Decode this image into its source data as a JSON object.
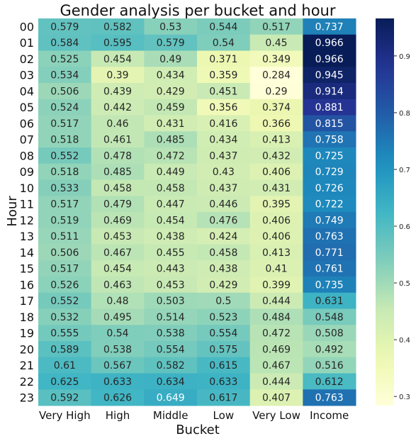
{
  "chart_data": {
    "type": "heatmap",
    "title": "Gender analysis per bucket and hour",
    "xlabel": "Bucket",
    "ylabel": "Hour",
    "x_categories": [
      "Very High",
      "High",
      "Middle",
      "Low",
      "Very Low",
      "Income"
    ],
    "y_categories": [
      "00",
      "01",
      "02",
      "03",
      "04",
      "05",
      "06",
      "07",
      "08",
      "09",
      "10",
      "11",
      "12",
      "13",
      "14",
      "15",
      "16",
      "17",
      "18",
      "19",
      "20",
      "21",
      "22",
      "23"
    ],
    "values": [
      [
        0.579,
        0.582,
        0.53,
        0.544,
        0.517,
        0.737
      ],
      [
        0.584,
        0.595,
        0.579,
        0.54,
        0.45,
        0.966
      ],
      [
        0.525,
        0.454,
        0.49,
        0.371,
        0.349,
        0.966
      ],
      [
        0.534,
        0.39,
        0.434,
        0.359,
        0.284,
        0.945
      ],
      [
        0.506,
        0.439,
        0.429,
        0.451,
        0.29,
        0.914
      ],
      [
        0.524,
        0.442,
        0.459,
        0.356,
        0.374,
        0.881
      ],
      [
        0.517,
        0.46,
        0.431,
        0.416,
        0.366,
        0.815
      ],
      [
        0.518,
        0.461,
        0.485,
        0.434,
        0.413,
        0.758
      ],
      [
        0.552,
        0.478,
        0.472,
        0.437,
        0.432,
        0.725
      ],
      [
        0.518,
        0.485,
        0.449,
        0.43,
        0.406,
        0.729
      ],
      [
        0.533,
        0.458,
        0.458,
        0.437,
        0.431,
        0.726
      ],
      [
        0.517,
        0.479,
        0.447,
        0.446,
        0.395,
        0.722
      ],
      [
        0.519,
        0.469,
        0.454,
        0.476,
        0.406,
        0.749
      ],
      [
        0.511,
        0.453,
        0.438,
        0.424,
        0.406,
        0.763
      ],
      [
        0.506,
        0.467,
        0.455,
        0.458,
        0.413,
        0.771
      ],
      [
        0.517,
        0.454,
        0.443,
        0.438,
        0.41,
        0.761
      ],
      [
        0.526,
        0.463,
        0.453,
        0.429,
        0.399,
        0.735
      ],
      [
        0.552,
        0.48,
        0.503,
        0.5,
        0.444,
        0.631
      ],
      [
        0.532,
        0.495,
        0.514,
        0.523,
        0.484,
        0.548
      ],
      [
        0.555,
        0.54,
        0.538,
        0.554,
        0.472,
        0.508
      ],
      [
        0.589,
        0.538,
        0.554,
        0.575,
        0.469,
        0.492
      ],
      [
        0.61,
        0.567,
        0.582,
        0.615,
        0.467,
        0.516
      ],
      [
        0.625,
        0.633,
        0.634,
        0.633,
        0.444,
        0.612
      ],
      [
        0.592,
        0.626,
        0.649,
        0.617,
        0.407,
        0.763
      ]
    ],
    "colorbar": {
      "colormap": "YlGnBu",
      "range": [
        0.284,
        0.966
      ],
      "ticks": [
        0.3,
        0.4,
        0.5,
        0.6,
        0.7,
        0.8,
        0.9
      ]
    },
    "grid": false
  }
}
